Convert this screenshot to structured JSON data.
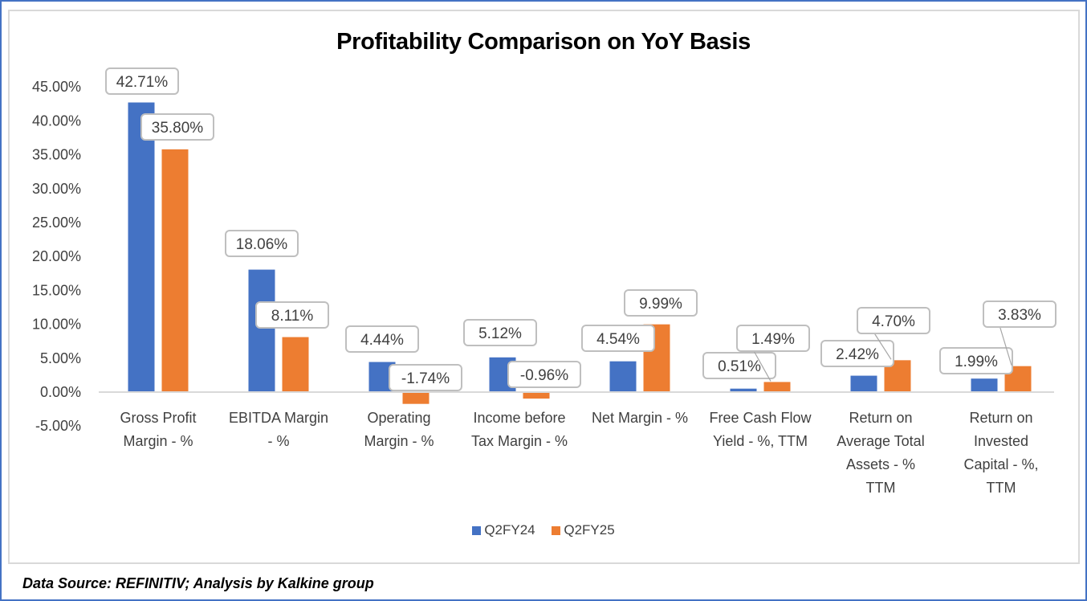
{
  "chart_data": {
    "type": "bar",
    "title": "Profitability Comparison on YoY Basis",
    "xlabel": "",
    "ylabel": "",
    "ylim": [
      -5,
      45
    ],
    "yticks": [
      "45.00%",
      "40.00%",
      "35.00%",
      "30.00%",
      "25.00%",
      "20.00%",
      "15.00%",
      "10.00%",
      "5.00%",
      "0.00%",
      "-5.00%"
    ],
    "ytick_values": [
      45,
      40,
      35,
      30,
      25,
      20,
      15,
      10,
      5,
      0,
      -5
    ],
    "grid": false,
    "legend_position": "bottom",
    "categories": [
      [
        "Gross Profit",
        "Margin - %"
      ],
      [
        "EBITDA Margin",
        "- %"
      ],
      [
        "Operating",
        "Margin - %"
      ],
      [
        "Income before",
        "Tax Margin - %"
      ],
      [
        "Net Margin - %"
      ],
      [
        "Free Cash Flow",
        "Yield - %, TTM"
      ],
      [
        "Return on",
        "Average Total",
        "Assets - %",
        "TTM"
      ],
      [
        "Return on",
        "Invested",
        "Capital - %,",
        "TTM"
      ]
    ],
    "series": [
      {
        "name": "Q2FY24",
        "color": "#4472c4",
        "values": [
          42.71,
          18.06,
          4.44,
          5.12,
          4.54,
          0.51,
          2.42,
          1.99
        ],
        "labels": [
          "42.71%",
          "18.06%",
          "4.44%",
          "5.12%",
          "4.54%",
          "0.51%",
          "2.42%",
          "1.99%"
        ]
      },
      {
        "name": "Q2FY25",
        "color": "#ed7d31",
        "values": [
          35.8,
          8.11,
          -1.74,
          -0.96,
          9.99,
          1.49,
          4.7,
          3.83
        ],
        "labels": [
          "35.80%",
          "8.11%",
          "-1.74%",
          "-0.96%",
          "9.99%",
          "1.49%",
          "4.70%",
          "3.83%"
        ]
      }
    ]
  },
  "footer": {
    "source": "Data Source: REFINITIV; Analysis by Kalkine group"
  }
}
